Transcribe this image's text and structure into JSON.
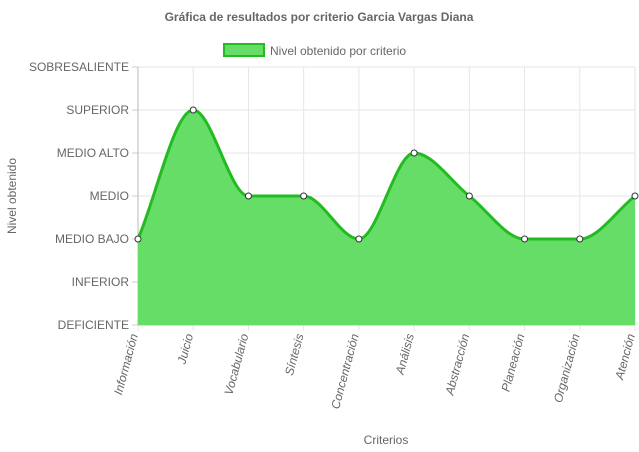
{
  "chart_data": {
    "type": "area",
    "title": "Gráfica de resultados por criterio Garcia Vargas Diana",
    "xlabel": "Criterios",
    "ylabel": "Nivel obtenido",
    "levels": [
      "DEFICIENTE",
      "INFERIOR",
      "MEDIO BAJO",
      "MEDIO",
      "MEDIO ALTO",
      "SUPERIOR",
      "SOBRESALIENTE"
    ],
    "categories": [
      "Información",
      "Juicio",
      "Vocabulario",
      "Síntesis",
      "Concentración",
      "Análisis",
      "Abstracción",
      "Planeación",
      "Organización",
      "Atención"
    ],
    "series": [
      {
        "name": "Nivel obtenido por criterio",
        "values": [
          "MEDIO BAJO",
          "SUPERIOR",
          "MEDIO",
          "MEDIO",
          "MEDIO BAJO",
          "MEDIO ALTO",
          "MEDIO",
          "MEDIO BAJO",
          "MEDIO BAJO",
          "MEDIO"
        ]
      }
    ],
    "grid": true,
    "legend_position": "top",
    "colors": {
      "fill": "#66dd66",
      "line": "#22bb22",
      "point_fill": "#ffffff",
      "point_stroke": "#333333",
      "grid": "#e6e6e6"
    }
  }
}
